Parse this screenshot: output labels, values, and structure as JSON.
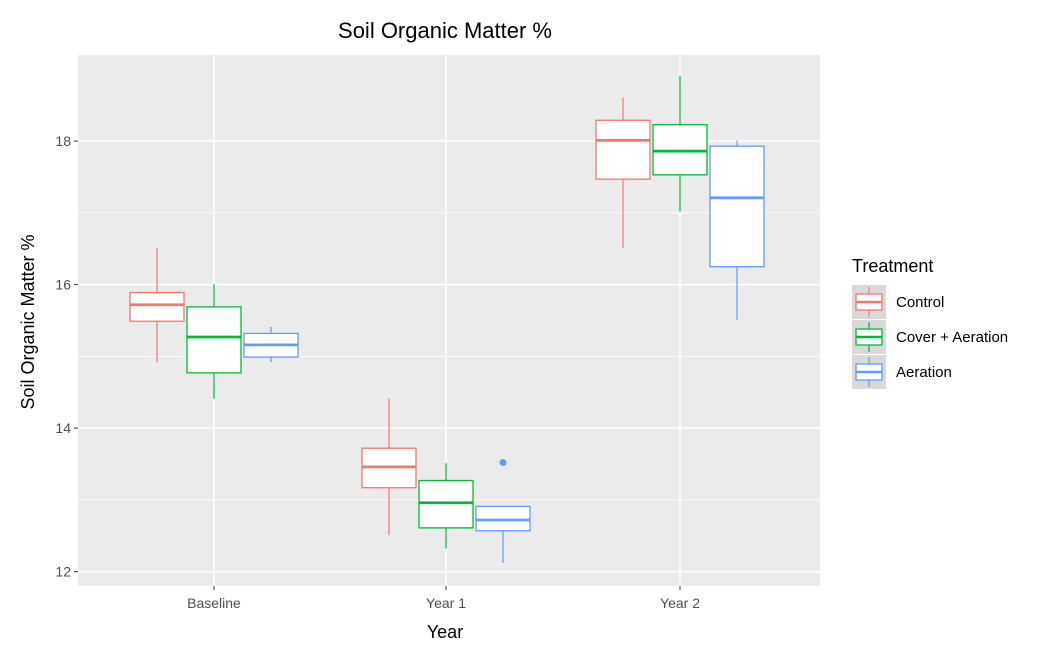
{
  "chart_data": {
    "type": "boxplot",
    "title": "Soil Organic Matter %",
    "xlabel": "Year",
    "ylabel": "Soil Organic Matter %",
    "ylim": [
      11.8,
      19.2
    ],
    "yticks": [
      12,
      14,
      16,
      18
    ],
    "ytick_labels": [
      "12",
      "14",
      "16",
      "18"
    ],
    "categories": [
      "Baseline",
      "Year 1",
      "Year 2"
    ],
    "grid": true,
    "panel_background": "#ebebeb",
    "legend": {
      "title": "Treatment",
      "position": "right"
    },
    "series": [
      {
        "name": "Control",
        "color": "#f8766d",
        "boxes": [
          {
            "min": 14.92,
            "q1": 15.49,
            "median": 15.72,
            "q3": 15.89,
            "max": 16.51,
            "outliers": []
          },
          {
            "min": 12.51,
            "q1": 13.17,
            "median": 13.46,
            "q3": 13.72,
            "max": 14.41,
            "outliers": []
          },
          {
            "min": 16.51,
            "q1": 17.47,
            "median": 18.01,
            "q3": 18.29,
            "max": 18.61,
            "outliers": []
          }
        ]
      },
      {
        "name": "Cover + Aeration",
        "color": "#00ba38",
        "boxes": [
          {
            "min": 14.41,
            "q1": 14.77,
            "median": 15.27,
            "q3": 15.69,
            "max": 16.01,
            "outliers": []
          },
          {
            "min": 12.32,
            "q1": 12.61,
            "median": 12.96,
            "q3": 13.27,
            "max": 13.51,
            "outliers": []
          },
          {
            "min": 17.02,
            "q1": 17.53,
            "median": 17.86,
            "q3": 18.23,
            "max": 18.91,
            "outliers": []
          }
        ]
      },
      {
        "name": "Aeration",
        "color": "#619cff",
        "boxes": [
          {
            "min": 14.92,
            "q1": 14.99,
            "median": 15.16,
            "q3": 15.32,
            "max": 15.41,
            "outliers": []
          },
          {
            "min": 12.12,
            "q1": 12.57,
            "median": 12.72,
            "q3": 12.91,
            "max": 12.91,
            "outliers": [
              13.52
            ]
          },
          {
            "min": 15.51,
            "q1": 16.25,
            "median": 17.21,
            "q3": 17.93,
            "max": 18.01,
            "outliers": []
          }
        ]
      }
    ]
  }
}
